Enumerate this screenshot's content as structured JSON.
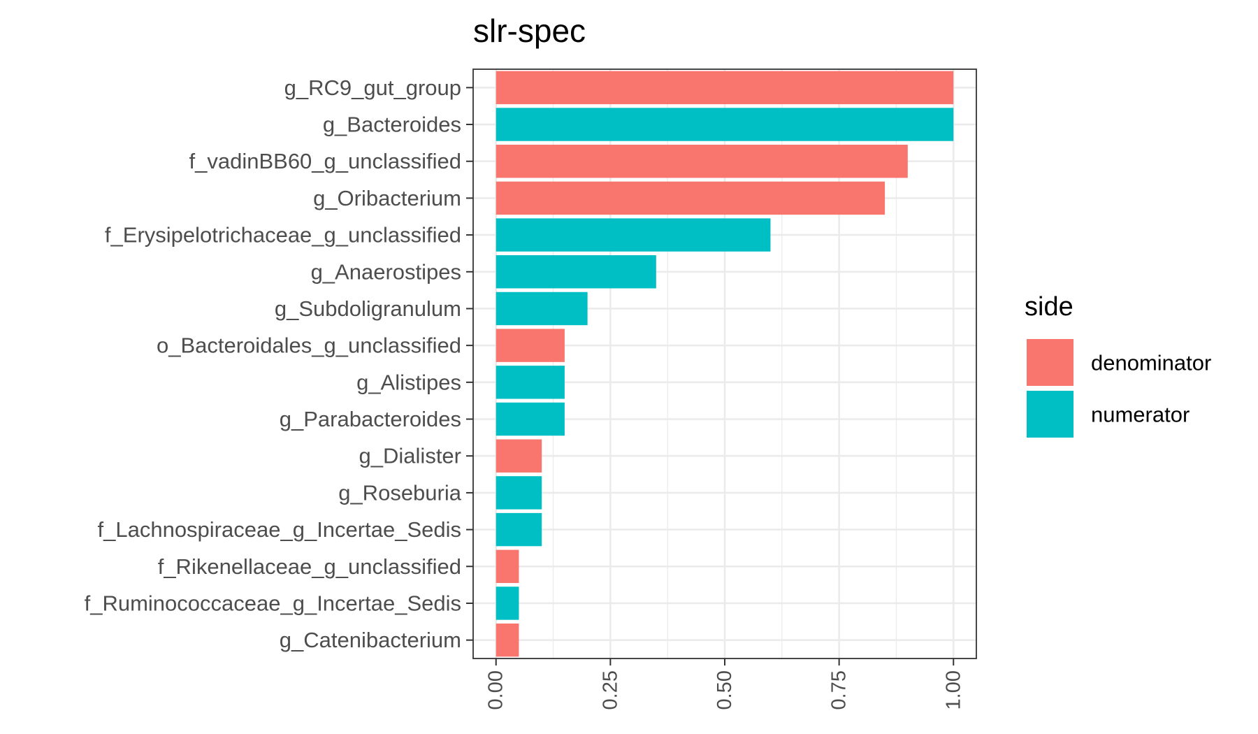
{
  "chart_data": {
    "type": "bar",
    "orientation": "horizontal",
    "title": "slr-spec",
    "xlabel": "",
    "ylabel": "",
    "categories": [
      "g_RC9_gut_group",
      "g_Bacteroides",
      "f_vadinBB60_g_unclassified",
      "g_Oribacterium",
      "f_Erysipelotrichaceae_g_unclassified",
      "g_Anaerostipes",
      "g_Subdoligranulum",
      "o_Bacteroidales_g_unclassified",
      "g_Alistipes",
      "g_Parabacteroides",
      "g_Dialister",
      "g_Roseburia",
      "f_Lachnospiraceae_g_Incertae_Sedis",
      "f_Rikenellaceae_g_unclassified",
      "f_Ruminococcaceae_g_Incertae_Sedis",
      "g_Catenibacterium"
    ],
    "values": [
      1.0,
      1.0,
      0.9,
      0.85,
      0.6,
      0.35,
      0.2,
      0.15,
      0.15,
      0.15,
      0.1,
      0.1,
      0.1,
      0.05,
      0.05,
      0.05
    ],
    "side": [
      "denominator",
      "numerator",
      "denominator",
      "denominator",
      "numerator",
      "numerator",
      "numerator",
      "denominator",
      "numerator",
      "numerator",
      "denominator",
      "numerator",
      "numerator",
      "denominator",
      "numerator",
      "denominator"
    ],
    "xlim": [
      -0.05,
      1.05
    ],
    "xticks": [
      0,
      0.25,
      0.5,
      0.75,
      1
    ],
    "xtick_labels": [
      "0.00",
      "0.25",
      "0.50",
      "0.75",
      "1.00"
    ],
    "grid": true,
    "legend": {
      "title": "side",
      "position": "right",
      "entries": [
        {
          "name": "denominator",
          "color": "#F8766D"
        },
        {
          "name": "numerator",
          "color": "#00BFC4"
        }
      ]
    }
  }
}
